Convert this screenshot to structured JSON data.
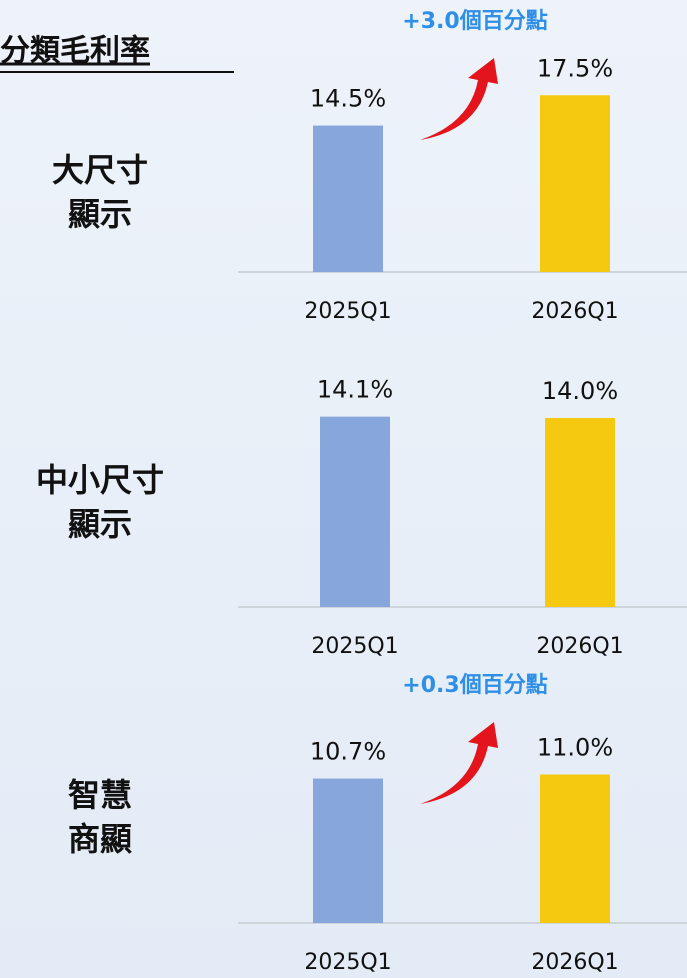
{
  "title": "分類毛利率",
  "chart_data": [
    {
      "type": "bar",
      "label": [
        "大尺寸",
        "顯示"
      ],
      "categories": [
        "2025Q1",
        "2026Q1"
      ],
      "values": [
        14.5,
        17.5
      ],
      "value_labels": [
        "14.5%",
        "17.5%"
      ],
      "colors": [
        "#86a6dc",
        "#f5c90f"
      ],
      "ylim": [
        0,
        20
      ],
      "annotation": "+3.0個百分點"
    },
    {
      "type": "bar",
      "label": [
        "中小尺寸",
        "顯示"
      ],
      "categories": [
        "2025Q1",
        "2026Q1"
      ],
      "values": [
        14.1,
        14.0
      ],
      "value_labels": [
        "14.1%",
        "14.0%"
      ],
      "colors": [
        "#86a6dc",
        "#f5c90f"
      ],
      "ylim": [
        0,
        16
      ]
    },
    {
      "type": "bar",
      "label": [
        "智慧",
        "商顯"
      ],
      "categories": [
        "2025Q1",
        "2026Q1"
      ],
      "values": [
        10.7,
        11.0
      ],
      "value_labels": [
        "10.7%",
        "11.0%"
      ],
      "colors": [
        "#86a6dc",
        "#f5c90f"
      ],
      "ylim": [
        0,
        14
      ],
      "annotation": "+0.3個百分點"
    }
  ]
}
